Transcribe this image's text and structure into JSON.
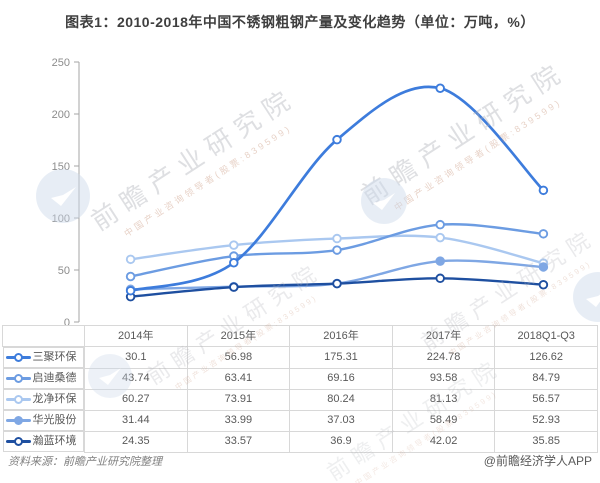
{
  "title": "图表1：2010-2018年中国不锈钢粗钢产量及变化趋势（单位：万吨，%）",
  "chart_data": {
    "type": "line",
    "categories": [
      "2014年",
      "2015年",
      "2016年",
      "2017年",
      "2018Q1-Q3"
    ],
    "series": [
      {
        "name": "三聚环保",
        "values": [
          30.1,
          56.98,
          175.31,
          224.78,
          126.62
        ],
        "color": "#3d7cdc",
        "marker": "open"
      },
      {
        "name": "启迪桑德",
        "values": [
          43.74,
          63.41,
          69.16,
          93.58,
          84.79
        ],
        "color": "#6c9ce2",
        "marker": "open"
      },
      {
        "name": "龙净环保",
        "values": [
          60.27,
          73.91,
          80.24,
          81.13,
          56.57
        ],
        "color": "#aac8f0",
        "marker": "open"
      },
      {
        "name": "华光股份",
        "values": [
          31.44,
          33.99,
          37.03,
          58.49,
          52.93
        ],
        "color": "#7fa7e4",
        "marker": "filled"
      },
      {
        "name": "瀚蓝环境",
        "values": [
          24.35,
          33.57,
          36.9,
          42.02,
          35.85
        ],
        "color": "#1e4fa0",
        "marker": "open"
      }
    ],
    "ylim": [
      0,
      250
    ],
    "yticks": [
      0,
      50,
      100,
      150,
      200,
      250
    ],
    "grid": false,
    "legend_position": "table-left-column",
    "axis_color": "#a6a6a6",
    "tick_label_color": "#8c8c8c"
  },
  "footer": {
    "source": "资料来源：前瞻产业研究院整理",
    "credit": "@前瞻经济学人APP"
  },
  "watermark": {
    "brand": "前瞻产业研究院",
    "sub": "中国产业咨询领导者(股票:839599)"
  }
}
